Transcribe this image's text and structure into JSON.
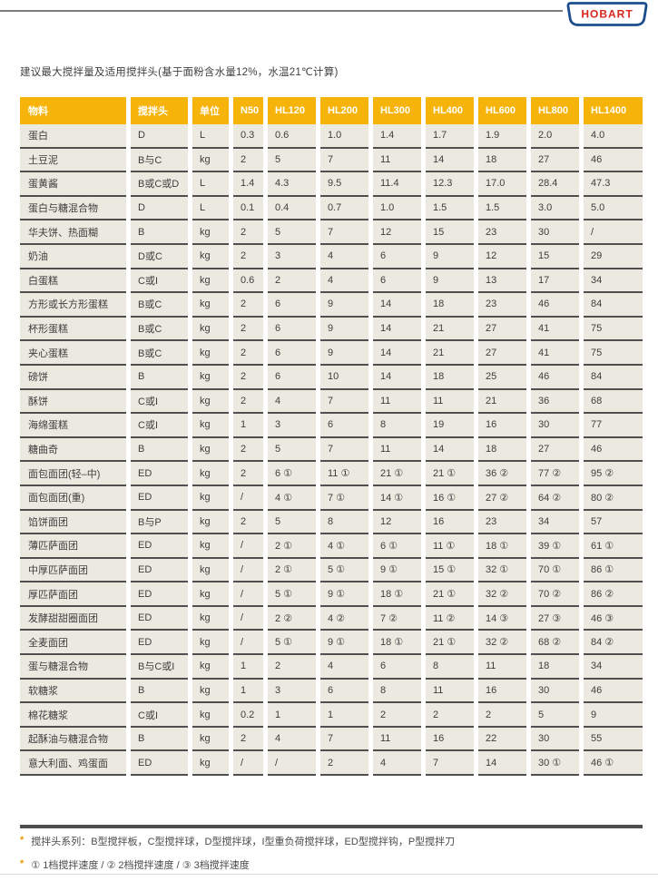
{
  "page": {
    "logo_text": "HOBART",
    "title": "建议最大搅拌量及适用搅拌头(基于面粉含水量12%，水温21℃计算)"
  },
  "table": {
    "headers": [
      "物料",
      "搅拌头",
      "单位",
      "N50",
      "HL120",
      "HL200",
      "HL300",
      "HL400",
      "HL600",
      "HL800",
      "HL1400"
    ],
    "rows": [
      [
        "蛋白",
        "D",
        "L",
        "0.3",
        "0.6",
        "1.0",
        "1.4",
        "1.7",
        "1.9",
        "2.0",
        "4.0"
      ],
      [
        "土豆泥",
        "B与C",
        "kg",
        "2",
        "5",
        "7",
        "11",
        "14",
        "18",
        "27",
        "46"
      ],
      [
        "蛋黄酱",
        "B或C或D",
        "L",
        "1.4",
        "4.3",
        "9.5",
        "11.4",
        "12.3",
        "17.0",
        "28.4",
        "47.3"
      ],
      [
        "蛋白与糖混合物",
        "D",
        "L",
        "0.1",
        "0.4",
        "0.7",
        "1.0",
        "1.5",
        "1.5",
        "3.0",
        "5.0"
      ],
      [
        "华夫饼、热面糊",
        "B",
        "kg",
        "2",
        "5",
        "7",
        "12",
        "15",
        "23",
        "30",
        "/"
      ],
      [
        "奶油",
        "D或C",
        "kg",
        "2",
        "3",
        "4",
        "6",
        "9",
        "12",
        "15",
        "29"
      ],
      [
        "白蛋糕",
        "C或I",
        "kg",
        "0.6",
        "2",
        "4",
        "6",
        "9",
        "13",
        "17",
        "34"
      ],
      [
        "方形或长方形蛋糕",
        "B或C",
        "kg",
        "2",
        "6",
        "9",
        "14",
        "18",
        "23",
        "46",
        "84"
      ],
      [
        "杯形蛋糕",
        "B或C",
        "kg",
        "2",
        "6",
        "9",
        "14",
        "21",
        "27",
        "41",
        "75"
      ],
      [
        "夹心蛋糕",
        "B或C",
        "kg",
        "2",
        "6",
        "9",
        "14",
        "21",
        "27",
        "41",
        "75"
      ],
      [
        "磅饼",
        "B",
        "kg",
        "2",
        "6",
        "10",
        "14",
        "18",
        "25",
        "46",
        "84"
      ],
      [
        "酥饼",
        "C或I",
        "kg",
        "2",
        "4",
        "7",
        "11",
        "11",
        "21",
        "36",
        "68"
      ],
      [
        "海绵蛋糕",
        "C或I",
        "kg",
        "1",
        "3",
        "6",
        "8",
        "19",
        "16",
        "30",
        "77"
      ],
      [
        "糖曲奇",
        "B",
        "kg",
        "2",
        "5",
        "7",
        "11",
        "14",
        "18",
        "27",
        "46"
      ],
      [
        "面包面团(轻–中)",
        "ED",
        "kg",
        "2",
        "6 ①",
        "11 ①",
        "21 ①",
        "21 ①",
        "36 ②",
        "77 ②",
        "95 ②"
      ],
      [
        "面包面团(重)",
        "ED",
        "kg",
        "/",
        "4 ①",
        "7 ①",
        "14 ①",
        "16 ①",
        "27 ②",
        "64 ②",
        "80 ②"
      ],
      [
        "馅饼面团",
        "B与P",
        "kg",
        "2",
        "5",
        "8",
        "12",
        "16",
        "23",
        "34",
        "57"
      ],
      [
        "薄匹萨面团",
        "ED",
        "kg",
        "/",
        "2 ①",
        "4 ①",
        "6 ①",
        "11 ①",
        "18 ①",
        "39 ①",
        "61 ①"
      ],
      [
        "中厚匹萨面团",
        "ED",
        "kg",
        "/",
        "2 ①",
        "5 ①",
        "9 ①",
        "15 ①",
        "32 ①",
        "70 ①",
        "86 ①"
      ],
      [
        "厚匹萨面团",
        "ED",
        "kg",
        "/",
        "5 ①",
        "9 ①",
        "18 ①",
        "21 ①",
        "32 ②",
        "70 ②",
        "86 ②"
      ],
      [
        "发酵甜甜圈面团",
        "ED",
        "kg",
        "/",
        "2 ②",
        "4 ②",
        "7 ②",
        "11 ②",
        "14 ③",
        "27 ③",
        "46 ③"
      ],
      [
        "全麦面团",
        "ED",
        "kg",
        "/",
        "5 ①",
        "9 ①",
        "18 ①",
        "21 ①",
        "32 ②",
        "68 ②",
        "84 ②"
      ],
      [
        "蛋与糖混合物",
        "B与C或I",
        "kg",
        "1",
        "2",
        "4",
        "6",
        "8",
        "11",
        "18",
        "34"
      ],
      [
        "软糖浆",
        "B",
        "kg",
        "1",
        "3",
        "6",
        "8",
        "11",
        "16",
        "30",
        "46"
      ],
      [
        "棉花糖浆",
        "C或I",
        "kg",
        "0.2",
        "1",
        "1",
        "2",
        "2",
        "2",
        "5",
        "9"
      ],
      [
        "起酥油与糖混合物",
        "B",
        "kg",
        "2",
        "4",
        "7",
        "11",
        "16",
        "22",
        "30",
        "55"
      ],
      [
        "意大利面、鸡蛋面",
        "ED",
        "kg",
        "/",
        "/",
        "2",
        "4",
        "7",
        "14",
        "30 ①",
        "46 ①"
      ]
    ]
  },
  "footnotes": [
    {
      "marker": "*",
      "text": "搅拌头系列：B型搅拌板，C型搅拌球，D型搅拌球，I型重负荷搅拌球，ED型搅拌钩，P型搅拌刀"
    },
    {
      "marker": "*",
      "text": "① 1档搅拌速度 / ② 2档搅拌速度 / ③ 3档搅拌速度"
    }
  ],
  "colors": {
    "accent_orange": "#F6B40A",
    "cell_bg": "#ECEAE0",
    "row_line": "#4F4F4F",
    "logo_blue": "#1C4E8E",
    "logo_red": "#D8251D",
    "rule_gray": "#7D7D7D"
  }
}
